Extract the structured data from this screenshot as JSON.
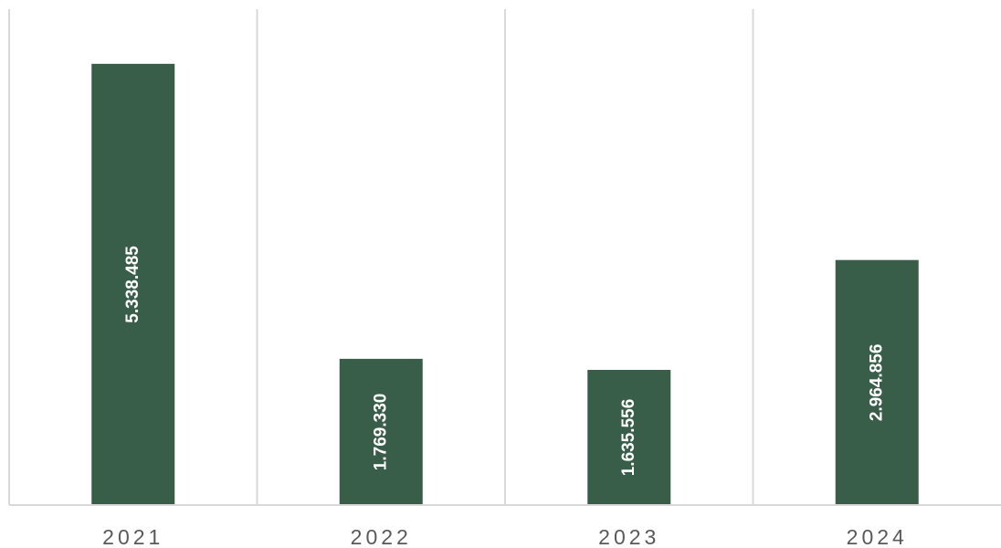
{
  "chart_data": {
    "type": "bar",
    "categories": [
      "2021",
      "2022",
      "2023",
      "2024"
    ],
    "values": [
      5338485,
      1769330,
      1635556,
      2964856
    ],
    "data_labels": [
      "5.338.485",
      "1.769.330",
      "1.635.556",
      "2.964.856"
    ],
    "title": "",
    "xlabel": "",
    "ylabel": "",
    "ylim": [
      0,
      6000000
    ],
    "grid": "vertical category separators",
    "legend": "none",
    "bar_color": "#385E49",
    "grid_color": "#D9D9D9"
  }
}
